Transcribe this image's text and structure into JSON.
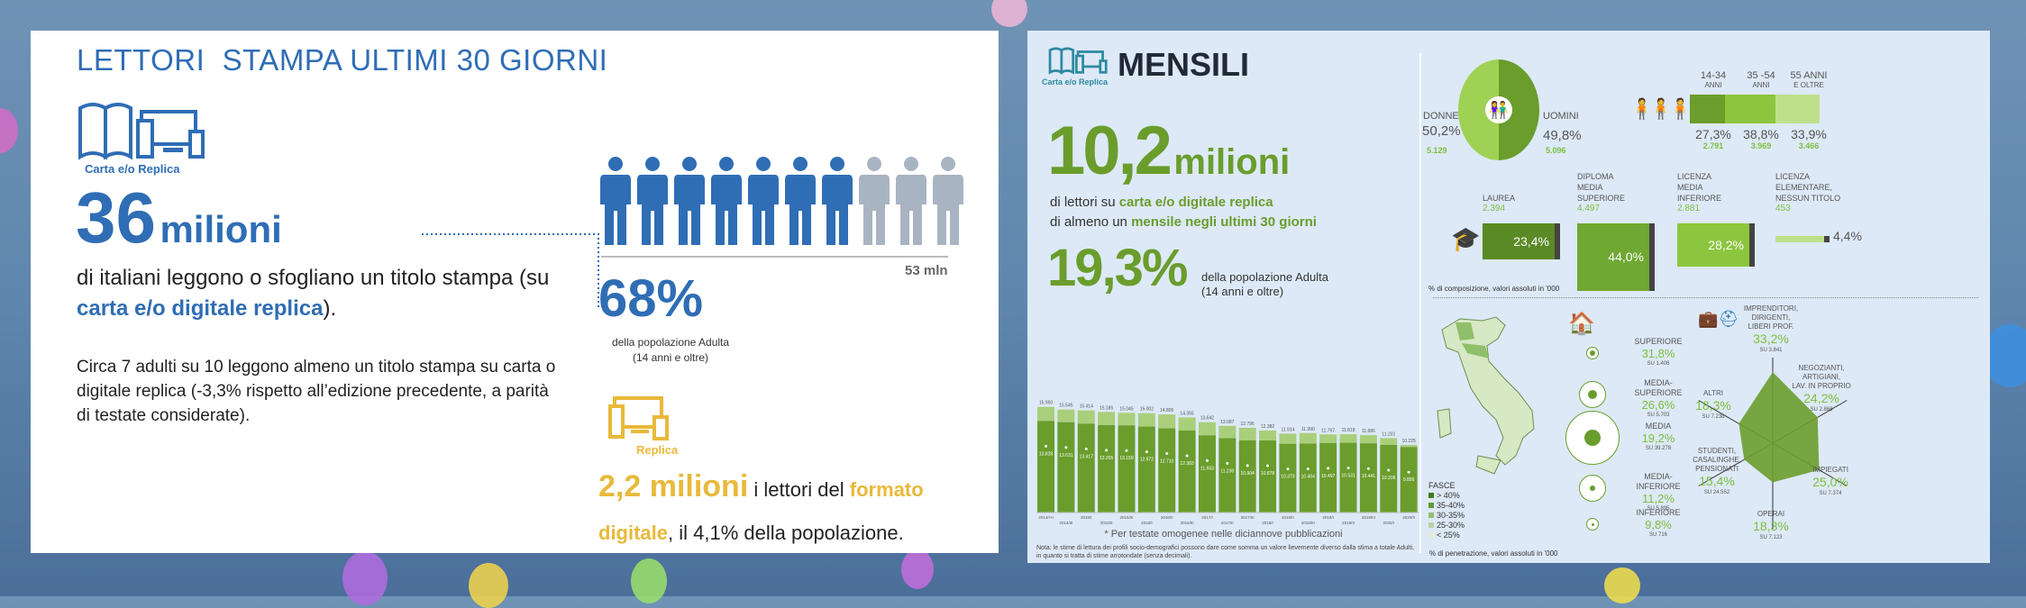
{
  "left": {
    "title": "LETTORI  STAMPA ULTIMI 30 GIORNI",
    "icon_caption": "Carta e/o Replica",
    "big_number": "36",
    "big_unit": "milioni",
    "desc_part1": "di italiani leggono o sfogliano un titolo stampa (su ",
    "desc_highlight": "carta e/o digitale replica",
    "desc_part2": ").",
    "note": "Circa 7 adulti su 10 leggono almeno un titolo stampa su carta o digitale replica (-3,3% rispetto all’edizione precedente, a parità di testate considerate).",
    "people_total": "53 mln",
    "people_filled": 7,
    "people_count": 10,
    "percent": "68%",
    "percent_caption1": "della popolazione Adulta",
    "percent_caption2": "(14 anni e oltre)",
    "replica_caption": "Replica",
    "replica_number": "2,2 milioni",
    "replica_text1": " i lettori del ",
    "replica_highlight1": "formato",
    "replica_highlight2": "digitale",
    "replica_text2": ", il 4,1% della popolazione.",
    "colors": {
      "blue": "#2f6db5",
      "gold": "#e8b93a",
      "gray": "#a9b4c2"
    }
  },
  "right": {
    "icon_caption": "Carta e/o Replica",
    "title": "MENSILI",
    "big_number": "10,2",
    "big_unit": "milioni",
    "line1_a": "di lettori su ",
    "line1_b": "carta e/o digitale replica",
    "line2_a": "di almeno un ",
    "line2_b": "mensile negli ultimi 30 giorni",
    "percent": "19,3%",
    "percent_caption1": "della popolazione Adulta",
    "percent_caption2": "(14 anni e oltre)",
    "footnote": "* Per testate omogenee nelle diciannove pubblicazioni",
    "nota": "Nota: le stime di lettura dei profili socio-demografici possono dare come somma un valore lievemente diverso dalla stima a totale Adulti, in quanto si tratta di stime arrotondate (senza decimali).",
    "gender": {
      "donne_label": "DONNE",
      "donne_pct": "50,2%",
      "donne_val": "5.129",
      "uomini_label": "UOMINI",
      "uomini_pct": "49,8%",
      "uomini_val": "5.096"
    },
    "age": [
      {
        "label1": "14-34",
        "label2": "ANNI",
        "pct": "27,3%",
        "val": "2.791",
        "share": 27.3,
        "color": "#6a9d2c"
      },
      {
        "label1": "35 -54",
        "label2": "ANNI",
        "pct": "38,8%",
        "val": "3.969",
        "share": 38.8,
        "color": "#8cc63f"
      },
      {
        "label1": "55 ANNI",
        "label2": "E OLTRE",
        "pct": "33,9%",
        "val": "3.466",
        "share": 33.9,
        "color": "#bfe08a"
      }
    ],
    "education": [
      {
        "l1": "",
        "l2": "",
        "l3": "LAUREA",
        "val": "2.394",
        "pct": "23,4%",
        "share": 23.4,
        "color": "#5a8a25"
      },
      {
        "l1": "DIPLOMA",
        "l2": "MEDIA",
        "l3": "SUPERIORE",
        "val": "4.497",
        "pct": "44,0%",
        "share": 44.0,
        "color": "#6fa832"
      },
      {
        "l1": "LICENZA",
        "l2": "MEDIA",
        "l3": "INFERIORE",
        "val": "2.881",
        "pct": "28,2%",
        "share": 28.2,
        "color": "#8cc63f"
      },
      {
        "l1": "LICENZA",
        "l2": "ELEMENTARE,",
        "l3": "NESSUN TITOLO",
        "val": "453",
        "pct": "4,4%",
        "share": 4.4,
        "color": "#bfe08a"
      }
    ],
    "composition_note": "% di composizione, valori assoluti in '000",
    "penetration_note": "% di penetrazione, valori assoluti in '000",
    "fasce": {
      "title": "FASCE",
      "items": [
        {
          "label": "> 40%",
          "color": "#3f7a1e"
        },
        {
          "label": "35-40%",
          "color": "#5d9a35"
        },
        {
          "label": "30-35%",
          "color": "#8fbf6a"
        },
        {
          "label": "25-30%",
          "color": "#b9d6a0"
        },
        {
          "label": "< 25%",
          "color": "#e3eed6"
        }
      ]
    },
    "class": [
      {
        "label": "SUPERIORE",
        "pct": "31,8%",
        "su": "SU 1.406"
      },
      {
        "label": "MEDIA-SUPERIORE",
        "pct": "26,6%",
        "su": "SU 5.703"
      },
      {
        "label": "MEDIA",
        "pct": "19,2%",
        "su": "SU 39.278"
      },
      {
        "label": "MEDIA-INFERIORE",
        "pct": "11,2%",
        "su": "SU 5.895"
      },
      {
        "label": "INFERIORE",
        "pct": "9,8%",
        "su": "SU 716"
      }
    ],
    "profession": [
      {
        "l1": "IMPRENDITORI,",
        "l2": "DIRIGENTI,",
        "l3": "LIBERI PROF.",
        "pct": "33,2%",
        "su": "SU 3.841",
        "v": 33.2
      },
      {
        "l1": "NEGOZIANTI,",
        "l2": "ARTIGIANI,",
        "l3": "LAV. IN PROPRIO",
        "pct": "24,2%",
        "su": "SU 2.868",
        "v": 24.2
      },
      {
        "l1": "",
        "l2": "",
        "l3": "IMPIEGATI",
        "pct": "25,0%",
        "su": "SU 7.374",
        "v": 25.0
      },
      {
        "l1": "",
        "l2": "",
        "l3": "OPERAI",
        "pct": "18,3%",
        "su": "SU 7.123",
        "v": 18.3
      },
      {
        "l1": "STUDENTI,",
        "l2": "CASALINGHE,",
        "l3": "PENSIONATI",
        "pct": "15,4%",
        "su": "SU 24.552",
        "v": 15.4
      },
      {
        "l1": "",
        "l2": "",
        "l3": "ALTRI",
        "pct": "18,3%",
        "su": "SU 7.238",
        "v": 18.3
      }
    ]
  },
  "chart_data": {
    "type": "bar",
    "title": "",
    "categories": [
      "2014/I-II",
      "2014/III",
      "2015/I",
      "2015/II",
      "2015/III",
      "2016/I",
      "2016/II",
      "2016/III",
      "2017/I",
      "2017/II",
      "2017/III",
      "2018/I",
      "2018/II",
      "2018/III",
      "2019/I",
      "2019/II",
      "2019/III",
      "2020/I",
      "2020/II"
    ],
    "series": [
      {
        "name": "Totale",
        "values": [
          15950,
          15545,
          15414,
          15185,
          15045,
          15002,
          14805,
          14355,
          13642,
          13087,
          12796,
          12382,
          11914,
          11990,
          11797,
          11818,
          11686,
          11231,
          10225
        ]
      },
      {
        "name": "Testate omogenee*",
        "values": [
          13828,
          13631,
          13417,
          13205,
          13159,
          12972,
          12710,
          12383,
          11653,
          11230,
          10904,
          10878,
          10373,
          10404,
          10497,
          10531,
          10441,
          10208,
          9895
        ]
      }
    ],
    "total_labels": [
      "15.950",
      "15.545",
      "15.414",
      "15.185",
      "15.045",
      "15.002",
      "14.805",
      "14.355",
      "13.642",
      "13.087",
      "12.796",
      "12.382",
      "11.914",
      "11.990",
      "11.797",
      "11.818",
      "11.686",
      "11.231",
      "10.225"
    ],
    "inner_labels": [
      "13.828",
      "13.631",
      "13.417",
      "13.205",
      "13.159",
      "12.972",
      "12.710",
      "12.383",
      "11.653",
      "11.230",
      "10.904",
      "10.878",
      "10.373",
      "10.404",
      "10.497",
      "10.531",
      "10.441",
      "10.208",
      "9.895"
    ],
    "ylim": [
      0,
      17000
    ]
  }
}
